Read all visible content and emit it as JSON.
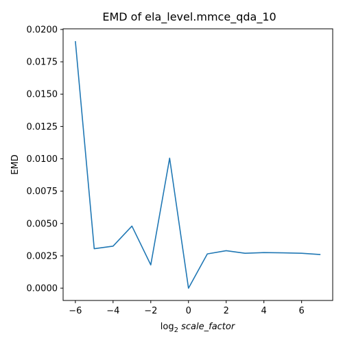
{
  "chart_data": {
    "type": "line",
    "title": "EMD of ela_level.mmce_qda_10",
    "xlabel_sub": "2",
    "xlabel_pre": "log",
    "xlabel_italic": "scale_factor",
    "ylabel": "EMD",
    "xlim": [
      -6.65,
      7.65
    ],
    "ylim": [
      -0.00095,
      0.02005
    ],
    "x_ticks": [
      -6,
      -4,
      -2,
      0,
      2,
      4,
      6
    ],
    "x_tick_labels": [
      "−6",
      "−4",
      "−2",
      "0",
      "2",
      "4",
      "6"
    ],
    "y_ticks": [
      0.0,
      0.0025,
      0.005,
      0.0075,
      0.01,
      0.0125,
      0.015,
      0.0175,
      0.02
    ],
    "y_tick_labels": [
      "0.0000",
      "0.0025",
      "0.0050",
      "0.0075",
      "0.0100",
      "0.0125",
      "0.0150",
      "0.0175",
      "0.0200"
    ],
    "grid": false,
    "series": [
      {
        "color": "#1f77b4",
        "x": [
          -6,
          -5,
          -4,
          -3,
          -2,
          -1,
          0,
          1,
          2,
          3,
          4,
          5,
          6,
          7
        ],
        "y": [
          0.0191,
          0.00305,
          0.00325,
          0.0048,
          0.0018,
          0.01005,
          0.0,
          0.00265,
          0.0029,
          0.0027,
          0.00275,
          0.00273,
          0.0027,
          0.0026
        ]
      }
    ]
  }
}
